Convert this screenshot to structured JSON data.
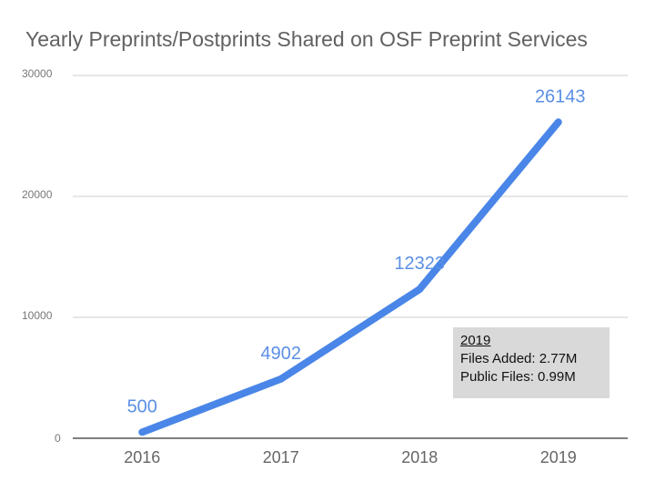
{
  "chart_data": {
    "type": "line",
    "title": "Yearly Preprints/Postprints Shared on OSF Preprint Services",
    "xlabel": "",
    "ylabel": "",
    "categories": [
      "2016",
      "2017",
      "2018",
      "2019"
    ],
    "series": [
      {
        "name": "Preprints/Postprints",
        "values": [
          500,
          4902,
          12323,
          26143
        ],
        "labels": [
          "500",
          "4902",
          "12323",
          "26143"
        ]
      }
    ],
    "ylim": [
      0,
      30000
    ],
    "yticks": [
      0,
      10000,
      20000,
      30000
    ],
    "ytick_labels": [
      "0",
      "10000",
      "20000",
      "30000"
    ],
    "grid": true,
    "colors": {
      "line": "#4a86e8",
      "label": "#5b8fe6",
      "axis_text": "#777777",
      "grid": "#cccccc"
    },
    "annotation": {
      "heading": "2019",
      "line1": "Files Added: 2.77M",
      "line2": "Public Files: 0.99M"
    }
  }
}
